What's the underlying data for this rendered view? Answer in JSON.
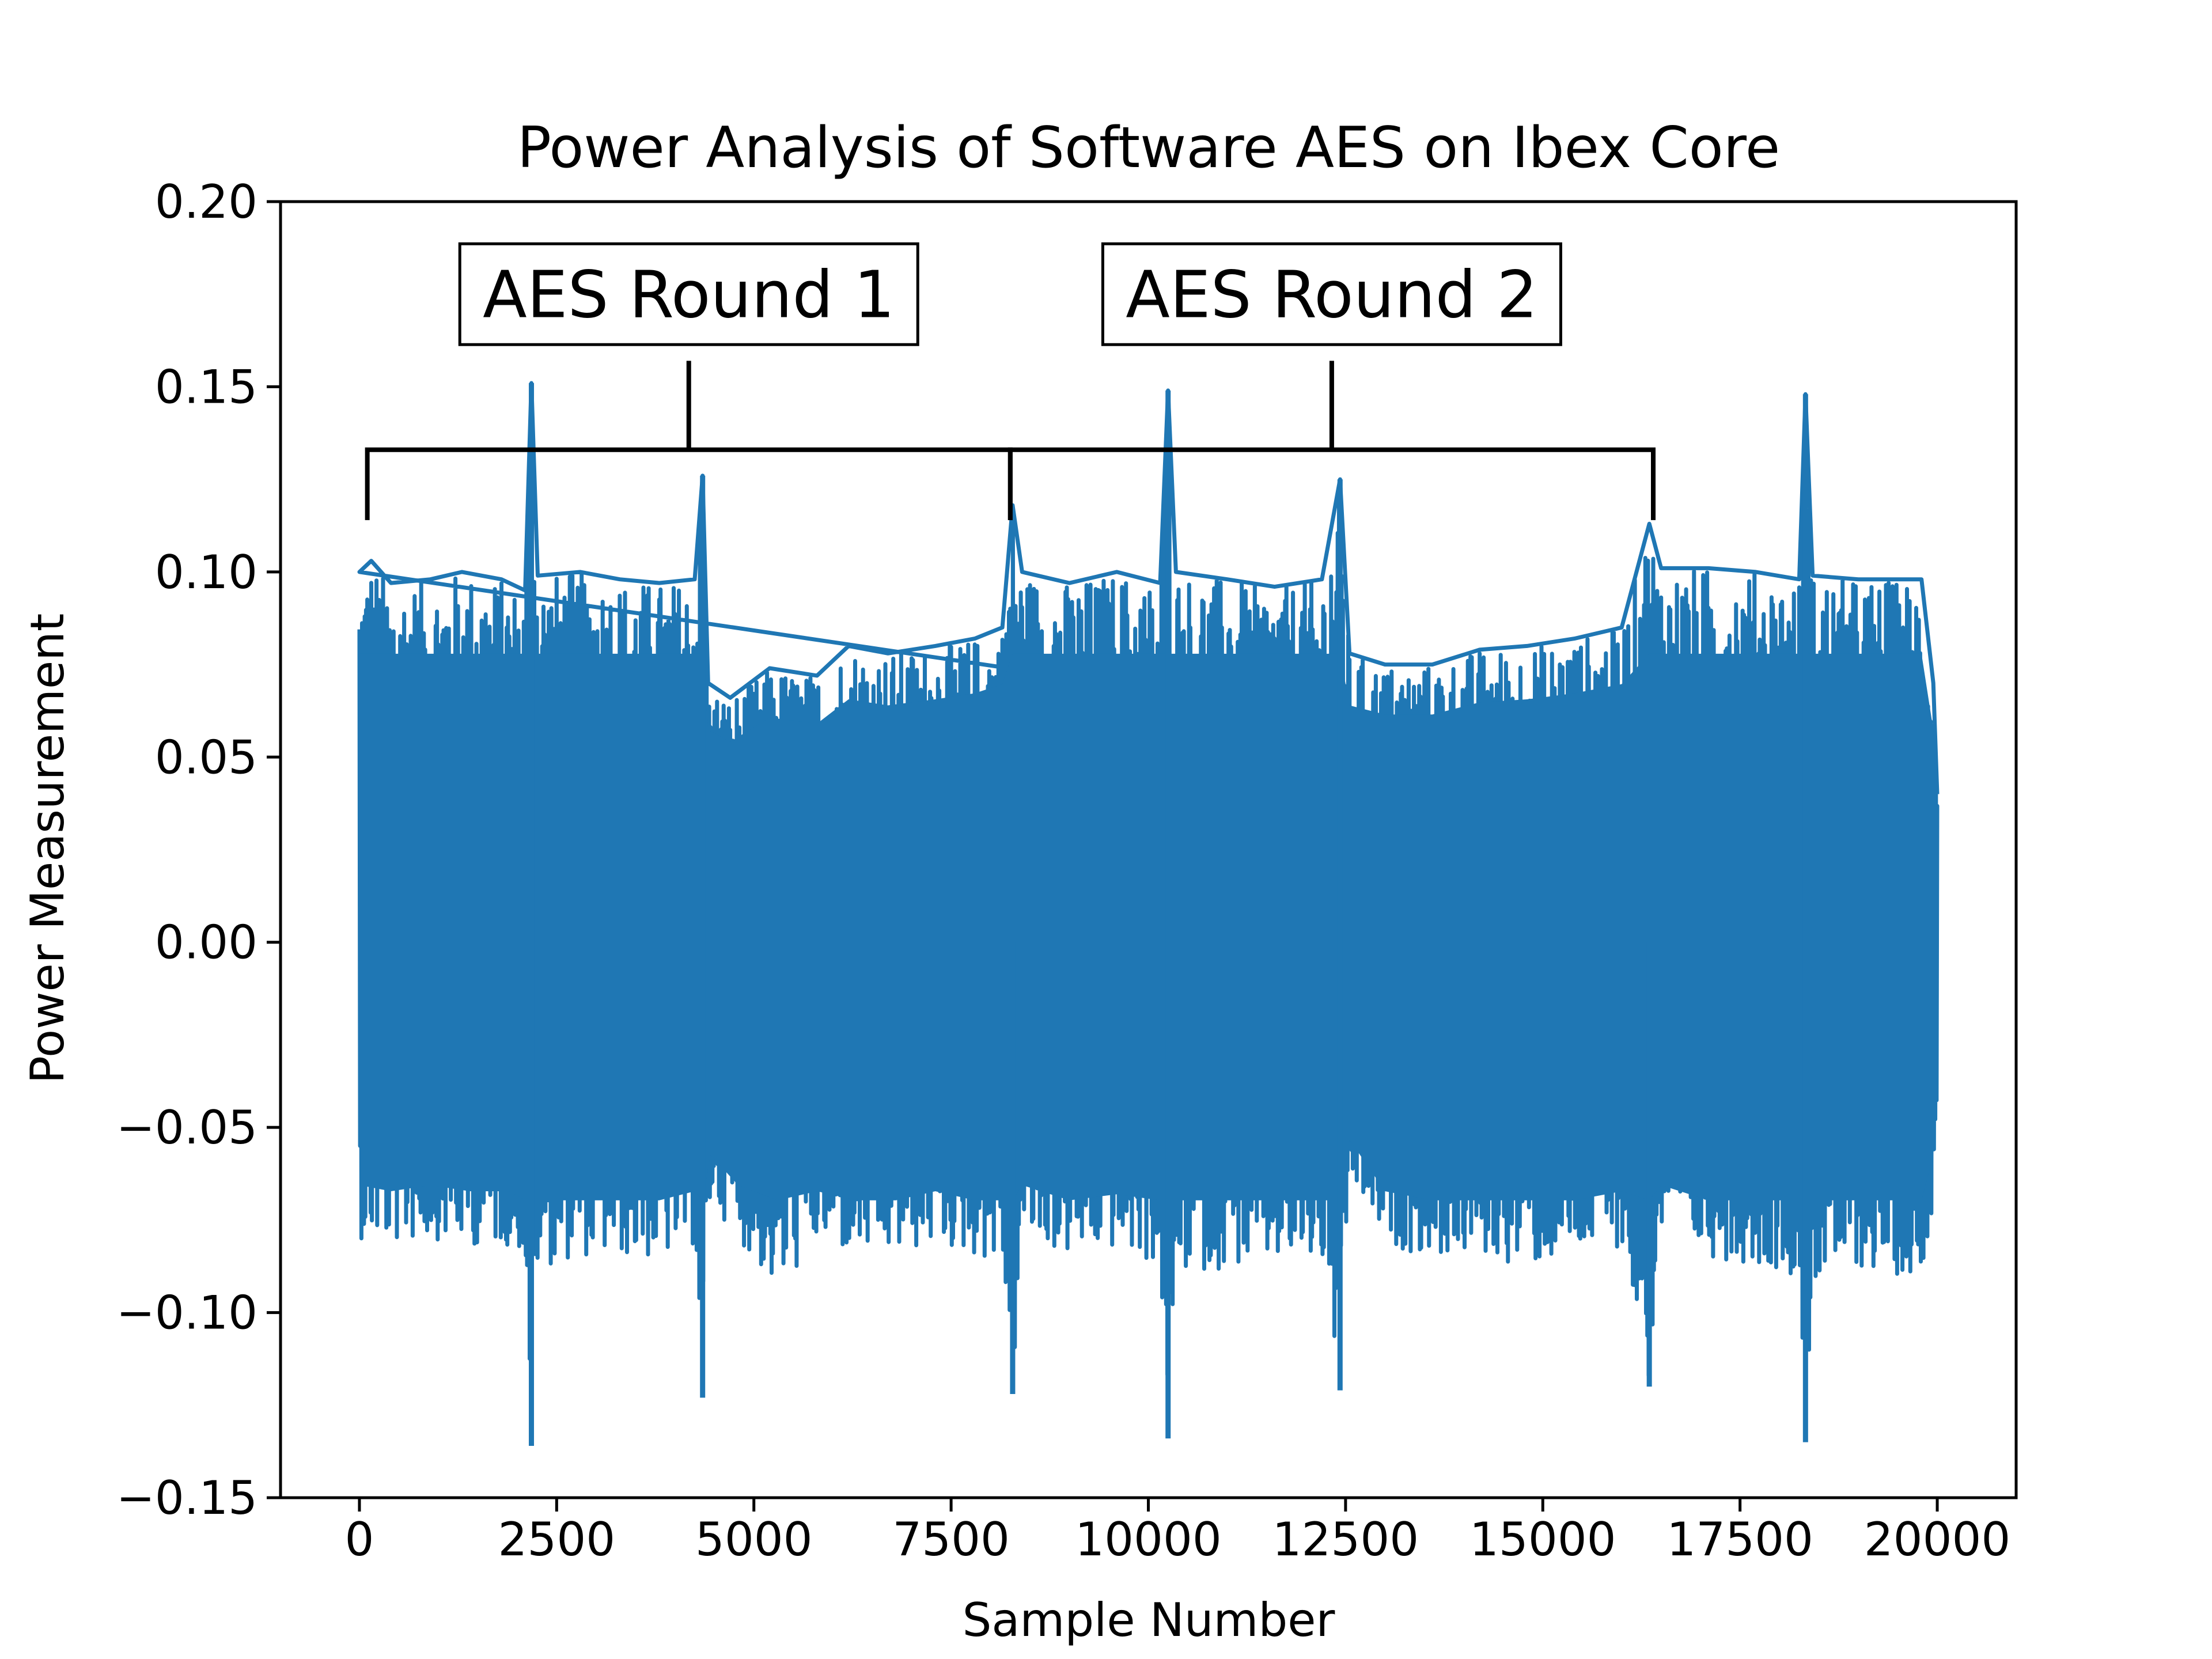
{
  "chart_data": {
    "type": "line",
    "title": "Power Analysis of Software AES on Ibex Core",
    "xlabel": "Sample Number",
    "ylabel": "Power Measurement",
    "xlim": [
      -1000,
      21000
    ],
    "ylim": [
      -0.15,
      0.2
    ],
    "x_ticks": [
      0,
      2500,
      5000,
      7500,
      10000,
      12500,
      15000,
      17500,
      20000
    ],
    "x_tick_labels": [
      "0",
      "2500",
      "5000",
      "7500",
      "10000",
      "12500",
      "15000",
      "17500",
      "20000"
    ],
    "y_ticks": [
      -0.15,
      -0.1,
      -0.05,
      0.0,
      0.05,
      0.1,
      0.15,
      0.2
    ],
    "y_tick_labels": [
      "−0.15",
      "−0.10",
      "−0.05",
      "0.00",
      "0.05",
      "0.10",
      "0.15",
      "0.20"
    ],
    "grid": false,
    "series": [
      {
        "color": "#1f77b4",
        "x_range": [
          0,
          20000
        ],
        "envelope_high": [
          [
            0,
            0.1
          ],
          [
            150,
            0.103
          ],
          [
            400,
            0.097
          ],
          [
            900,
            0.098
          ],
          [
            1300,
            0.1
          ],
          [
            1800,
            0.098
          ],
          [
            2100,
            0.095
          ],
          [
            2180,
            0.151
          ],
          [
            2260,
            0.099
          ],
          [
            2800,
            0.1
          ],
          [
            3300,
            0.098
          ],
          [
            3800,
            0.097
          ],
          [
            4250,
            0.098
          ],
          [
            4350,
            0.126
          ],
          [
            4420,
            0.07
          ],
          [
            4700,
            0.066
          ],
          [
            5200,
            0.074
          ],
          [
            5800,
            0.072
          ],
          [
            6200,
            0.08
          ],
          [
            6700,
            0.078
          ],
          [
            7300,
            0.08
          ],
          [
            7800,
            0.082
          ],
          [
            8150,
            0.085
          ],
          [
            8280,
            0.118
          ],
          [
            8400,
            0.1
          ],
          [
            9000,
            0.097
          ],
          [
            9600,
            0.1
          ],
          [
            10150,
            0.097
          ],
          [
            10250,
            0.149
          ],
          [
            10350,
            0.1
          ],
          [
            11000,
            0.098
          ],
          [
            11600,
            0.096
          ],
          [
            12200,
            0.098
          ],
          [
            12430,
            0.125
          ],
          [
            12550,
            0.078
          ],
          [
            13000,
            0.075
          ],
          [
            13600,
            0.075
          ],
          [
            14200,
            0.079
          ],
          [
            14800,
            0.08
          ],
          [
            15400,
            0.082
          ],
          [
            16000,
            0.085
          ],
          [
            16350,
            0.113
          ],
          [
            16500,
            0.101
          ],
          [
            17100,
            0.101
          ],
          [
            17700,
            0.1
          ],
          [
            18250,
            0.098
          ],
          [
            18330,
            0.148
          ],
          [
            18420,
            0.099
          ],
          [
            19000,
            0.098
          ],
          [
            19500,
            0.098
          ],
          [
            19800,
            0.098
          ],
          [
            19950,
            0.07
          ],
          [
            20000,
            0.04
          ]
        ],
        "envelope_low": [
          [
            0,
            -0.08
          ],
          [
            400,
            -0.082
          ],
          [
            900,
            -0.08
          ],
          [
            1400,
            -0.082
          ],
          [
            1900,
            -0.082
          ],
          [
            2100,
            -0.085
          ],
          [
            2180,
            -0.136
          ],
          [
            2260,
            -0.088
          ],
          [
            2800,
            -0.085
          ],
          [
            3300,
            -0.085
          ],
          [
            3800,
            -0.086
          ],
          [
            4250,
            -0.082
          ],
          [
            4350,
            -0.123
          ],
          [
            4450,
            -0.07
          ],
          [
            4800,
            -0.08
          ],
          [
            5300,
            -0.095
          ],
          [
            5800,
            -0.082
          ],
          [
            6300,
            -0.085
          ],
          [
            6800,
            -0.085
          ],
          [
            7300,
            -0.082
          ],
          [
            7800,
            -0.085
          ],
          [
            8150,
            -0.087
          ],
          [
            8280,
            -0.122
          ],
          [
            8400,
            -0.08
          ],
          [
            9000,
            -0.085
          ],
          [
            9600,
            -0.083
          ],
          [
            10150,
            -0.088
          ],
          [
            10250,
            -0.134
          ],
          [
            10350,
            -0.09
          ],
          [
            11000,
            -0.088
          ],
          [
            11600,
            -0.087
          ],
          [
            12200,
            -0.087
          ],
          [
            12430,
            -0.121
          ],
          [
            12550,
            -0.065
          ],
          [
            13000,
            -0.082
          ],
          [
            13600,
            -0.085
          ],
          [
            14200,
            -0.085
          ],
          [
            14800,
            -0.088
          ],
          [
            15400,
            -0.085
          ],
          [
            16000,
            -0.082
          ],
          [
            16350,
            -0.12
          ],
          [
            16500,
            -0.08
          ],
          [
            17100,
            -0.085
          ],
          [
            17700,
            -0.087
          ],
          [
            18250,
            -0.09
          ],
          [
            18330,
            -0.135
          ],
          [
            18420,
            -0.092
          ],
          [
            19000,
            -0.088
          ],
          [
            19500,
            -0.09
          ],
          [
            19800,
            -0.09
          ],
          [
            19950,
            -0.07
          ],
          [
            20000,
            -0.04
          ]
        ]
      }
    ],
    "annotations": [
      {
        "text": "AES Round 1",
        "bracket_x": [
          100,
          8250
        ],
        "bracket_y": 0.133,
        "tick_bottom_y": 0.114,
        "stem_x": 4175,
        "stem_top_y": 0.157,
        "label_y": 0.175
      },
      {
        "text": "AES Round 2",
        "bracket_x": [
          8250,
          16400
        ],
        "bracket_y": 0.133,
        "tick_bottom_y": 0.114,
        "stem_x": 12325,
        "stem_top_y": 0.157,
        "label_y": 0.175
      }
    ]
  }
}
